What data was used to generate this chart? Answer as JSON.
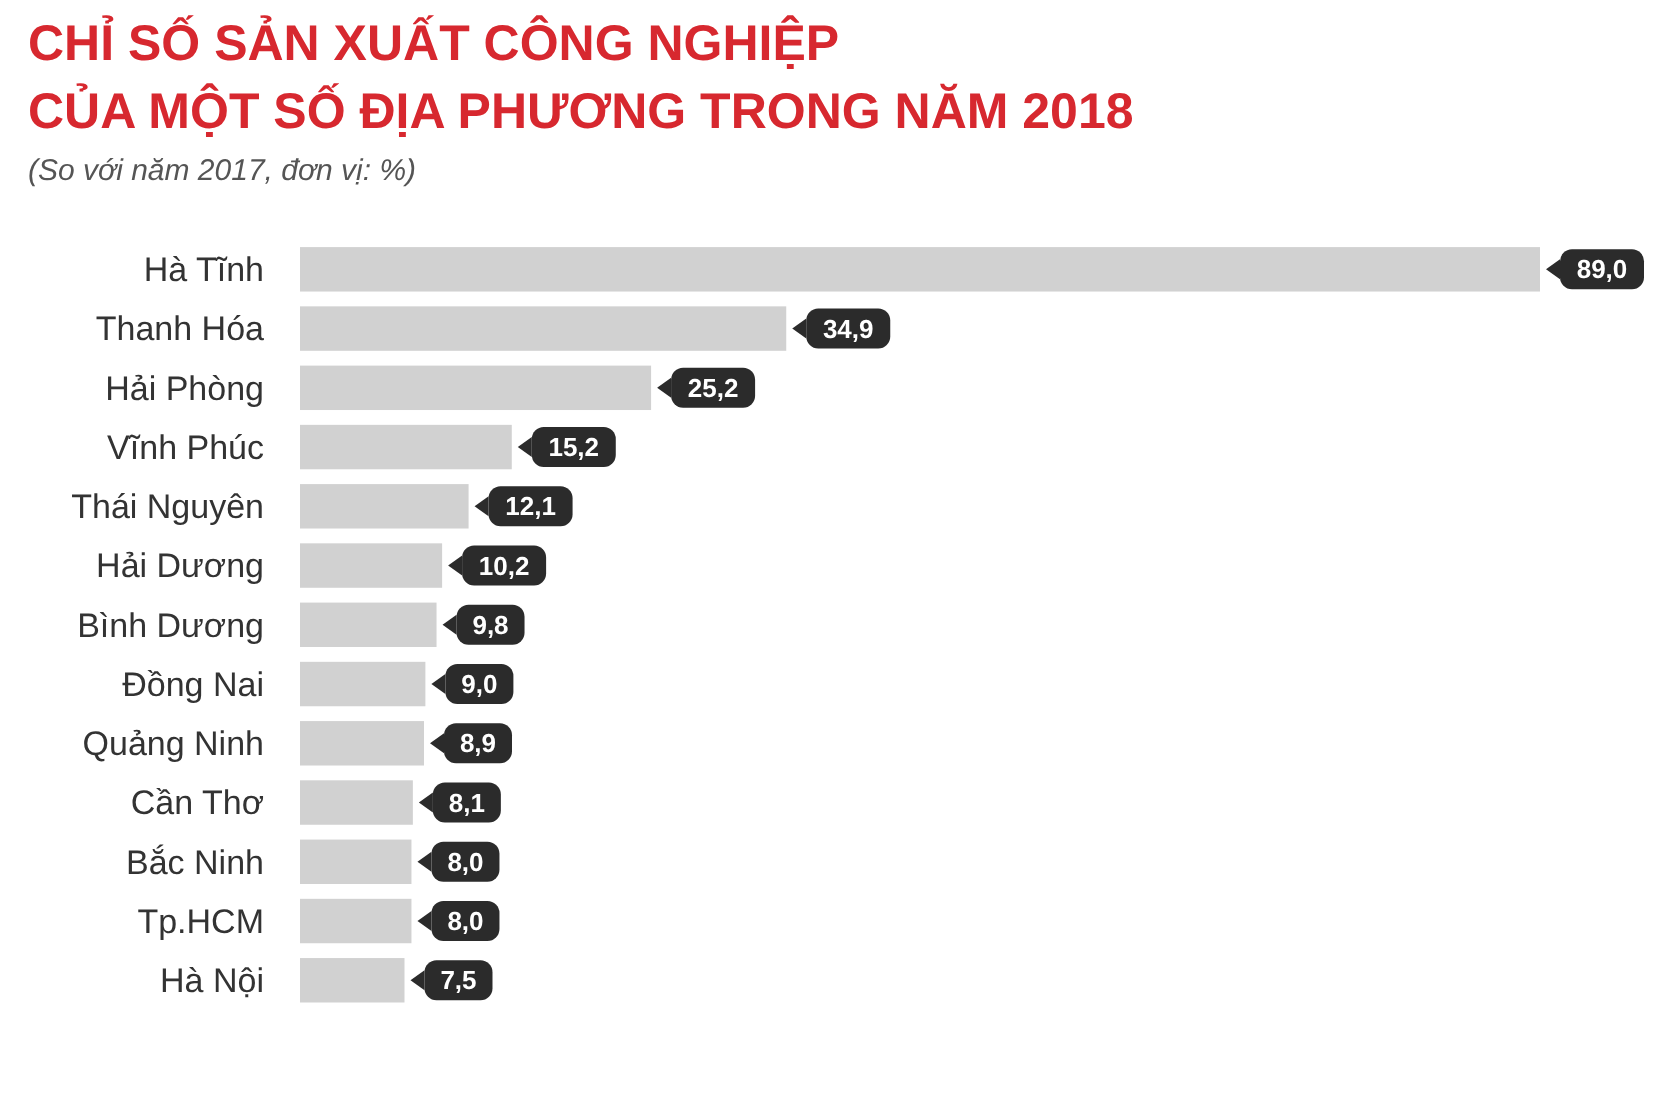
{
  "chart_data": {
    "type": "bar",
    "orientation": "horizontal",
    "title": "CHỈ SỐ SẢN XUẤT CÔNG NGHIỆP\nCỦA MỘT SỐ ĐỊA PHƯƠNG TRONG NĂM 2018",
    "subtitle": "(So với năm 2017, đơn vị: %)",
    "categories": [
      "Hà Tĩnh",
      "Thanh Hóa",
      "Hải Phòng",
      "Vĩnh Phúc",
      "Thái Nguyên",
      "Hải Dương",
      "Bình Dương",
      "Đồng Nai",
      "Quảng Ninh",
      "Cần Thơ",
      "Bắc Ninh",
      "Tp.HCM",
      "Hà Nội"
    ],
    "values": [
      89.0,
      34.9,
      25.2,
      15.2,
      12.1,
      10.2,
      9.8,
      9.0,
      8.9,
      8.1,
      8.0,
      8.0,
      7.5
    ],
    "value_labels": [
      "89,0",
      "34,9",
      "25,2",
      "15,2",
      "12,1",
      "10,2",
      "9,8",
      "9,0",
      "8,9",
      "8,1",
      "8,0",
      "8,0",
      "7,5"
    ],
    "color": "#d1d1d1"
  }
}
